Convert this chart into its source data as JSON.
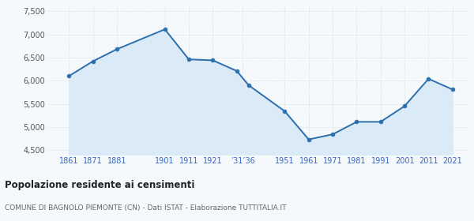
{
  "years": [
    1861,
    1871,
    1881,
    1901,
    1911,
    1921,
    1931,
    1936,
    1951,
    1961,
    1971,
    1981,
    1991,
    2001,
    2011,
    2021
  ],
  "population": [
    6100,
    6420,
    6680,
    7110,
    6460,
    6440,
    6210,
    5900,
    5340,
    4730,
    4840,
    5110,
    5110,
    5450,
    6040,
    5810
  ],
  "ylim": [
    4400,
    7600
  ],
  "yticks": [
    4500,
    5000,
    5500,
    6000,
    6500,
    7000,
    7500
  ],
  "ytick_labels": [
    "4,500",
    "5,000",
    "5,500",
    "6,000",
    "6,500",
    "7,000",
    "7,500"
  ],
  "line_color": "#2c6fad",
  "fill_color": "#daeaf7",
  "marker_color": "#2c6fad",
  "background_color": "#f5f9fc",
  "grid_color": "#cccccc",
  "title": "Popolazione residente ai censimenti",
  "subtitle": "COMUNE DI BAGNOLO PIEMONTE (CN) - Dati ISTAT - Elaborazione TUTTITALIA.IT",
  "title_color": "#222222",
  "subtitle_color": "#666666",
  "label_color": "#3366cc",
  "x_tick_positions": [
    1861,
    1871,
    1881,
    1901,
    1911,
    1921,
    1933.5,
    1951,
    1961,
    1971,
    1981,
    1991,
    2001,
    2011,
    2021
  ],
  "x_tick_labels": [
    "1861",
    "1871",
    "1881",
    "1901",
    "1911",
    "1921",
    "’31’36",
    "1951",
    "1961",
    "1971",
    "1981",
    "1991",
    "2001",
    "2011",
    "2021"
  ]
}
